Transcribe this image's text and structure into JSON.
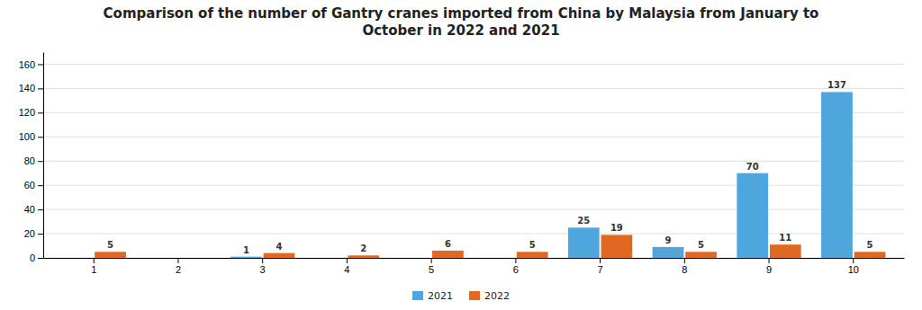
{
  "chart_data": {
    "type": "bar",
    "title": "Comparison of the number of Gantry cranes imported from China by Malaysia from January to\nOctober in 2022 and 2021",
    "categories": [
      "1",
      "2",
      "3",
      "4",
      "5",
      "6",
      "7",
      "8",
      "9",
      "10"
    ],
    "series": [
      {
        "name": "2021",
        "color": "#4ea6dc",
        "values": [
          0,
          0,
          1,
          0,
          0,
          0,
          25,
          9,
          70,
          137
        ],
        "value_labels": [
          null,
          null,
          "1",
          null,
          null,
          null,
          "25",
          "9",
          "70",
          "137"
        ]
      },
      {
        "name": "2022",
        "color": "#e06820",
        "values": [
          5,
          0,
          4,
          2,
          6,
          5,
          19,
          5,
          11,
          5
        ],
        "value_labels": [
          "5",
          null,
          "4",
          "2",
          "6",
          "5",
          "19",
          "5",
          "11",
          "5"
        ]
      }
    ],
    "ylim": [
      0,
      170
    ],
    "yticks": [
      0,
      20,
      40,
      60,
      80,
      100,
      120,
      140,
      160
    ],
    "grid": true,
    "legend": "bottom",
    "data_labels": true
  }
}
